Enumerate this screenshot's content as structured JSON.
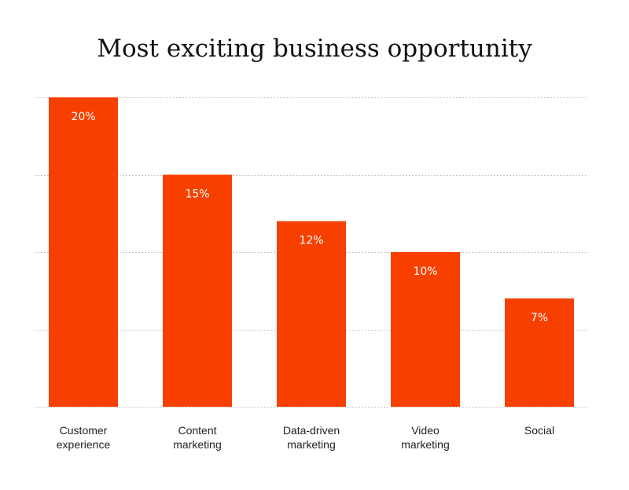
{
  "chart_data": {
    "type": "bar",
    "title": "Most exciting business opportunity",
    "xlabel": "",
    "ylabel": "",
    "categories": [
      [
        "Customer",
        "experience"
      ],
      [
        "Content",
        "marketing"
      ],
      [
        "Data-driven",
        "marketing"
      ],
      [
        "Video",
        "marketing"
      ],
      [
        "Social"
      ]
    ],
    "values": [
      20,
      15,
      12,
      10,
      7
    ],
    "value_labels": [
      "20%",
      "15%",
      "12%",
      "10%",
      "7%"
    ],
    "ylim": [
      0,
      20
    ],
    "y_gridlines": [
      0,
      5,
      10,
      15,
      20
    ],
    "grid": true,
    "legend": "none",
    "colors": {
      "bar": "#F74000",
      "grid": "#C8C8C8",
      "background": "#FFFFFF"
    }
  }
}
